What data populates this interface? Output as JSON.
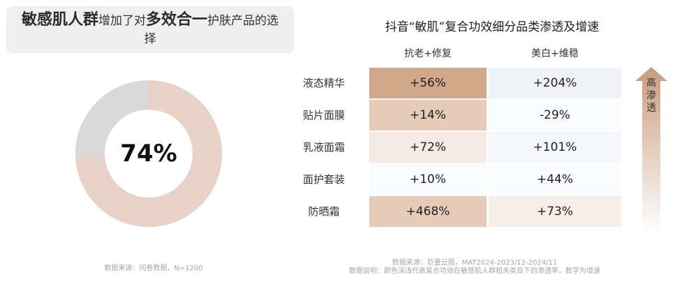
{
  "title": {
    "part1": "敏感肌人群",
    "part2": "增加了对",
    "part3": "多效合一",
    "part4": "护肤产品的选择"
  },
  "donut": {
    "value_label": "74%",
    "percent": 74,
    "colors": {
      "fill": "#e8d1c6",
      "rest": "#d9d9d9"
    }
  },
  "left_source": "数据来源：问卷数据，N=1200",
  "chart_data": {
    "type": "heatmap",
    "title": "抖音“敏肌”复合功效细分品类渗透及增速",
    "columns": [
      "抗老+修复",
      "美白+维稳"
    ],
    "rows": [
      "液态精华",
      "贴片面膜",
      "乳液面霜",
      "面护套装",
      "防晒霜"
    ],
    "values": [
      [
        "+56%",
        "+204%"
      ],
      [
        "+14%",
        "-29%"
      ],
      [
        "+72%",
        "+101%"
      ],
      [
        "+10%",
        "+44%"
      ],
      [
        "+468%",
        "+73%"
      ]
    ],
    "cell_colors": [
      [
        "#d2a88b",
        "#f1f2f6"
      ],
      [
        "#e6cbb8",
        "#fafbfd"
      ],
      [
        "#f6ebe4",
        "#f5f6f9"
      ],
      [
        "#fafbfd",
        "#fafbfd"
      ],
      [
        "#e6cbb8",
        "#f8eee8"
      ]
    ],
    "legend_arrow": "高渗透"
  },
  "right_source": {
    "line1": "数据来源：巨量云图，MAT2024-2023/12-2024/11",
    "line2": "数据说明：颜色深浅代表复合功效在敏感肌人群相关类目下的渗透率，数字为增速"
  }
}
